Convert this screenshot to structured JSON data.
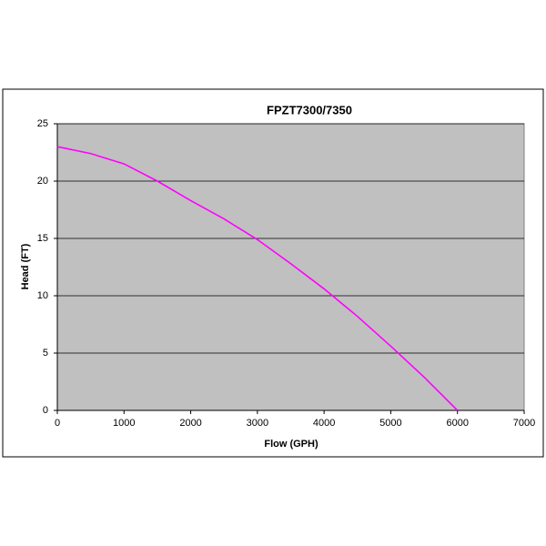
{
  "chart_data": {
    "type": "line",
    "title": "FPZT7300/7350",
    "x_label": "Flow (GPH)",
    "y_label": "Head (FT)",
    "x": [
      0,
      500,
      1000,
      1500,
      2000,
      2500,
      3000,
      3500,
      4000,
      4500,
      5000,
      5500,
      6000
    ],
    "series": [
      {
        "name": "FPZT7300/7350",
        "color": "#ff00ff",
        "values": [
          23,
          22.4,
          21.5,
          20.0,
          18.3,
          16.7,
          14.9,
          12.8,
          10.6,
          8.2,
          5.6,
          2.9,
          0
        ]
      }
    ],
    "xlim": [
      0,
      7000
    ],
    "xticks": [
      0,
      1000,
      2000,
      3000,
      4000,
      5000,
      6000,
      7000
    ],
    "ylim": [
      0,
      25
    ],
    "yticks": [
      0,
      5,
      10,
      15,
      20,
      25
    ],
    "grid": true
  }
}
